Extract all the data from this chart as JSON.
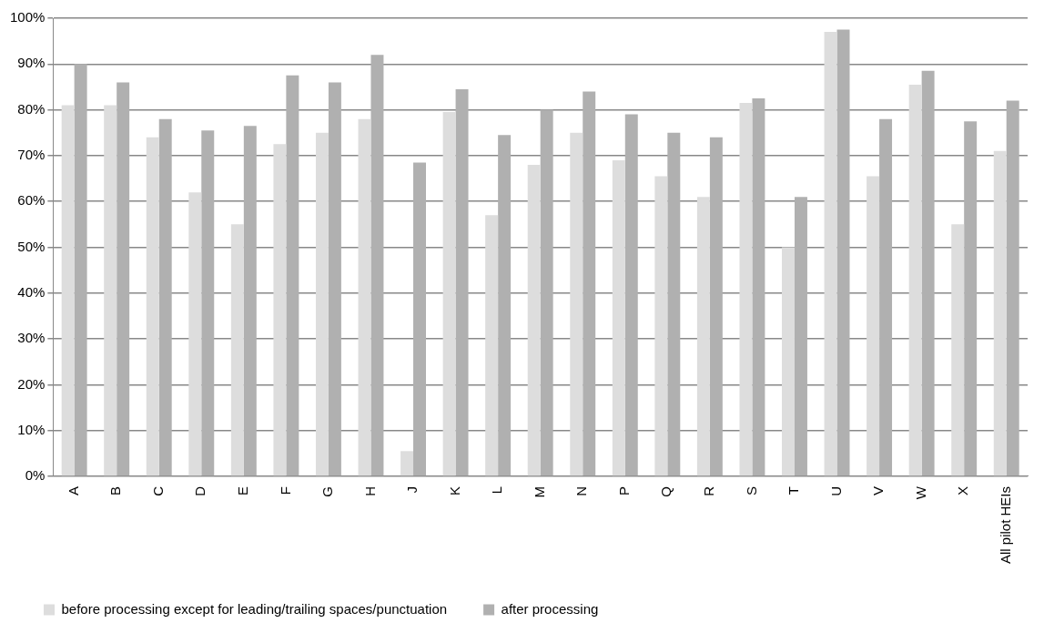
{
  "chart_data": {
    "type": "bar",
    "categories": [
      "A",
      "B",
      "C",
      "D",
      "E",
      "F",
      "G",
      "H",
      "J",
      "K",
      "L",
      "M",
      "N",
      "P",
      "Q",
      "R",
      "S",
      "T",
      "U",
      "V",
      "W",
      "X",
      "All pilot HEIs"
    ],
    "series": [
      {
        "name": "before processing except for leading/trailing spaces/punctuation",
        "color": "#dddddd",
        "values": [
          81,
          81,
          74,
          62,
          55,
          72.5,
          75,
          78,
          5.5,
          79.5,
          57,
          68,
          75,
          69,
          65.5,
          61,
          81.5,
          50,
          97,
          65.5,
          85.5,
          55,
          71
        ]
      },
      {
        "name": "after processing",
        "color": "#b0b0b0",
        "values": [
          90,
          86,
          78,
          75.5,
          76.5,
          87.5,
          86,
          92,
          68.5,
          84.5,
          74.5,
          80,
          84,
          79,
          75,
          74,
          82.5,
          61,
          97.5,
          78,
          88.5,
          77.5,
          82
        ]
      }
    ],
    "ylim": [
      0,
      100
    ],
    "yticks": [
      {
        "value": 0,
        "label": "0%"
      },
      {
        "value": 10,
        "label": "10%"
      },
      {
        "value": 20,
        "label": "20%"
      },
      {
        "value": 30,
        "label": "30%"
      },
      {
        "value": 40,
        "label": "40%"
      },
      {
        "value": 50,
        "label": "50%"
      },
      {
        "value": 60,
        "label": "60%"
      },
      {
        "value": 70,
        "label": "70%"
      },
      {
        "value": 80,
        "label": "80%"
      },
      {
        "value": 90,
        "label": "90%"
      },
      {
        "value": 100,
        "label": "100%"
      }
    ],
    "grid": "y",
    "legend": "bottom"
  }
}
